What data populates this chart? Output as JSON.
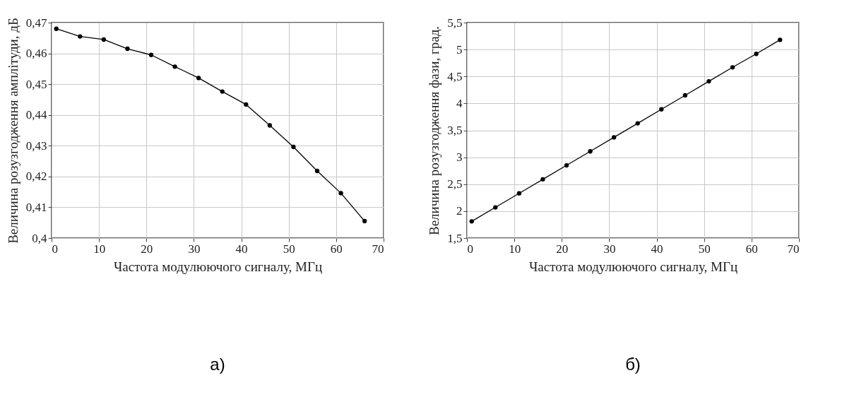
{
  "chart_data": [
    {
      "type": "line",
      "xlabel": "Частота модулюючого сигналу, МГц",
      "ylabel": "Величина розузгодження амплітуди, дБ",
      "annotations": [
        "а)"
      ],
      "marker": "circle",
      "grid": true,
      "x": [
        1,
        6,
        11,
        16,
        21,
        26,
        31,
        36,
        41,
        46,
        51,
        56,
        61,
        66
      ],
      "series": [
        {
          "color": "#000000",
          "values": [
            0.468,
            0.4655,
            0.4645,
            0.4615,
            0.4595,
            0.4557,
            0.452,
            0.4476,
            0.4434,
            0.4366,
            0.4296,
            0.4218,
            0.4146,
            0.4055
          ]
        }
      ],
      "xlim": [
        0,
        70
      ],
      "xticks": [
        0,
        10,
        20,
        30,
        40,
        50,
        60,
        70
      ],
      "ylim": [
        0.4,
        0.47
      ],
      "yticks": [
        {
          "value": 0.4,
          "label": "0,4"
        },
        {
          "value": 0.41,
          "label": "0,41"
        },
        {
          "value": 0.42,
          "label": "0,42"
        },
        {
          "value": 0.43,
          "label": "0,43"
        },
        {
          "value": 0.44,
          "label": "0,44"
        },
        {
          "value": 0.45,
          "label": "0,45"
        },
        {
          "value": 0.46,
          "label": "0,46"
        },
        {
          "value": 0.47,
          "label": "0,47"
        }
      ]
    },
    {
      "type": "line",
      "xlabel": "Частота модулюючого сигналу, МГц",
      "ylabel": "Величина розузгодження фази, град.",
      "annotations": [
        "б)"
      ],
      "marker": "circle",
      "grid": true,
      "x": [
        1,
        6,
        11,
        16,
        21,
        26,
        31,
        36,
        41,
        46,
        51,
        56,
        61,
        66
      ],
      "series": [
        {
          "color": "#000000",
          "values": [
            1.81,
            2.07,
            2.33,
            2.59,
            2.85,
            3.11,
            3.37,
            3.63,
            3.89,
            4.15,
            4.41,
            4.67,
            4.92,
            5.18
          ]
        }
      ],
      "xlim": [
        0,
        70
      ],
      "xticks": [
        0,
        10,
        20,
        30,
        40,
        50,
        60,
        70
      ],
      "ylim": [
        1.5,
        5.5
      ],
      "yticks": [
        {
          "value": 1.5,
          "label": "1,5"
        },
        2,
        {
          "value": 2.5,
          "label": "2,5"
        },
        3,
        {
          "value": 3.5,
          "label": "3,5"
        },
        4,
        {
          "value": 4.5,
          "label": "4,5"
        },
        5,
        {
          "value": 5.5,
          "label": "5,5"
        }
      ]
    }
  ]
}
